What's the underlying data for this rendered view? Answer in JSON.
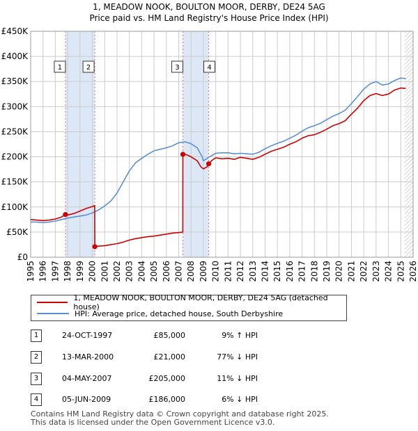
{
  "title": {
    "line1": "1, MEADOW NOOK, BOULTON MOOR, DERBY, DE24 5AG",
    "line2": "Price paid vs. HM Land Registry's House Price Index (HPI)"
  },
  "colors": {
    "red": "#cc0000",
    "blue": "#5b8fd4",
    "band": "#dde8f7",
    "grid": "#cccccc"
  },
  "chart_data": {
    "type": "line",
    "title": "Price paid vs. HM Land Registry's House Price Index (HPI)",
    "xlim": [
      1995,
      2026
    ],
    "ylim": [
      0,
      450000
    ],
    "x_ticks": [
      "1995",
      "1996",
      "1997",
      "1998",
      "1999",
      "2000",
      "2001",
      "2002",
      "2003",
      "2004",
      "2005",
      "2006",
      "2007",
      "2008",
      "2009",
      "2010",
      "2011",
      "2012",
      "2013",
      "2014",
      "2015",
      "2016",
      "2017",
      "2018",
      "2019",
      "2020",
      "2021",
      "2022",
      "2023",
      "2024",
      "2025",
      "2026"
    ],
    "y_ticks": [
      {
        "value": 0,
        "label": "£0"
      },
      {
        "value": 50000,
        "label": "£50K"
      },
      {
        "value": 100000,
        "label": "£100K"
      },
      {
        "value": 150000,
        "label": "£150K"
      },
      {
        "value": 200000,
        "label": "£200K"
      },
      {
        "value": 250000,
        "label": "£250K"
      },
      {
        "value": 300000,
        "label": "£300K"
      },
      {
        "value": 350000,
        "label": "£350K"
      },
      {
        "value": 400000,
        "label": "£400K"
      },
      {
        "value": 450000,
        "label": "£450K"
      }
    ],
    "shaded_periods": [
      [
        1997.82,
        2000.2
      ],
      [
        2007.34,
        2009.43
      ]
    ],
    "hatched_from": 2025.3,
    "series": [
      {
        "name": "1, MEADOW NOOK, BOULTON MOOR, DERBY, DE24 5AG (detached house)",
        "color": "#cc0000",
        "x": [
          1995.0,
          1995.5,
          1996.0,
          1996.5,
          1997.0,
          1997.5,
          1997.82,
          1998.0,
          1998.5,
          1999.0,
          1999.5,
          2000.0,
          2000.19,
          2000.2,
          2000.5,
          2001.0,
          2001.5,
          2002.0,
          2002.5,
          2003.0,
          2003.5,
          2004.0,
          2004.5,
          2005.0,
          2005.5,
          2006.0,
          2006.5,
          2007.0,
          2007.33,
          2007.34,
          2007.5,
          2007.75,
          2008.0,
          2008.5,
          2008.8,
          2009.0,
          2009.3,
          2009.43,
          2009.7,
          2010.0,
          2010.5,
          2011.0,
          2011.5,
          2012.0,
          2012.5,
          2013.0,
          2013.5,
          2014.0,
          2014.5,
          2015.0,
          2015.5,
          2016.0,
          2016.5,
          2017.0,
          2017.5,
          2018.0,
          2018.5,
          2019.0,
          2019.5,
          2020.0,
          2020.5,
          2021.0,
          2021.5,
          2022.0,
          2022.5,
          2023.0,
          2023.5,
          2024.0,
          2024.5,
          2025.0,
          2025.4
        ],
        "values": [
          75000,
          74000,
          73000,
          74000,
          76000,
          80000,
          85000,
          84000,
          87000,
          92000,
          97000,
          101000,
          103000,
          21000,
          22000,
          23000,
          25000,
          27000,
          30000,
          34000,
          37000,
          39000,
          41000,
          42000,
          44000,
          46000,
          48000,
          49000,
          50000,
          205000,
          205000,
          203000,
          200000,
          192000,
          180000,
          176000,
          180000,
          186000,
          193000,
          198000,
          196000,
          197000,
          195000,
          199000,
          197000,
          195000,
          199000,
          205000,
          211000,
          215000,
          219000,
          225000,
          230000,
          237000,
          242000,
          244000,
          249000,
          255000,
          262000,
          266000,
          272000,
          285000,
          297000,
          312000,
          322000,
          326000,
          322000,
          325000,
          333000,
          337000,
          336000
        ]
      },
      {
        "name": "HPI: Average price, detached house, South Derbyshire",
        "color": "#5b8fd4",
        "x": [
          1995.0,
          1995.5,
          1996.0,
          1996.5,
          1997.0,
          1997.5,
          1998.0,
          1998.5,
          1999.0,
          1999.5,
          2000.0,
          2000.5,
          2001.0,
          2001.5,
          2002.0,
          2002.5,
          2003.0,
          2003.5,
          2004.0,
          2004.5,
          2005.0,
          2005.5,
          2006.0,
          2006.5,
          2007.0,
          2007.5,
          2008.0,
          2008.5,
          2008.9,
          2009.0,
          2009.5,
          2010.0,
          2010.5,
          2011.0,
          2011.5,
          2012.0,
          2012.5,
          2013.0,
          2013.5,
          2014.0,
          2014.5,
          2015.0,
          2015.5,
          2016.0,
          2016.5,
          2017.0,
          2017.5,
          2018.0,
          2018.5,
          2019.0,
          2019.5,
          2020.0,
          2020.5,
          2021.0,
          2021.5,
          2022.0,
          2022.5,
          2023.0,
          2023.5,
          2024.0,
          2024.5,
          2025.0,
          2025.4
        ],
        "values": [
          70000,
          70000,
          69000,
          70000,
          72000,
          75000,
          78000,
          80000,
          82000,
          84000,
          88000,
          94000,
          102000,
          112000,
          128000,
          150000,
          172000,
          188000,
          197000,
          205000,
          212000,
          215000,
          218000,
          222000,
          228000,
          230000,
          226000,
          218000,
          200000,
          192000,
          200000,
          207000,
          208000,
          208000,
          206000,
          207000,
          206000,
          205000,
          209000,
          216000,
          222000,
          227000,
          231000,
          237000,
          243000,
          251000,
          258000,
          262000,
          267000,
          274000,
          281000,
          286000,
          293000,
          306000,
          320000,
          335000,
          345000,
          350000,
          343000,
          345000,
          352000,
          357000,
          356000
        ]
      }
    ],
    "sales": [
      {
        "label": "1",
        "x": 1997.82,
        "value": 85000
      },
      {
        "label": "2",
        "x": 2000.2,
        "value": 21000
      },
      {
        "label": "3",
        "x": 2007.34,
        "value": 205000
      },
      {
        "label": "4",
        "x": 2009.43,
        "value": 186000
      }
    ]
  },
  "legend": {
    "property": "1, MEADOW NOOK, BOULTON MOOR, DERBY, DE24 5AG (detached house)",
    "hpi": "HPI: Average price, detached house, South Derbyshire"
  },
  "transactions": [
    {
      "num": "1",
      "date": "24-OCT-1997",
      "price": "£85,000",
      "hpi": "9% ↑ HPI"
    },
    {
      "num": "2",
      "date": "13-MAR-2000",
      "price": "£21,000",
      "hpi": "77% ↓ HPI"
    },
    {
      "num": "3",
      "date": "04-MAY-2007",
      "price": "£205,000",
      "hpi": "11% ↓ HPI"
    },
    {
      "num": "4",
      "date": "05-JUN-2009",
      "price": "£186,000",
      "hpi": "6% ↓ HPI"
    }
  ],
  "footer": {
    "line1": "Contains HM Land Registry data © Crown copyright and database right 2025.",
    "line2": "This data is licensed under the Open Government Licence v3.0."
  }
}
